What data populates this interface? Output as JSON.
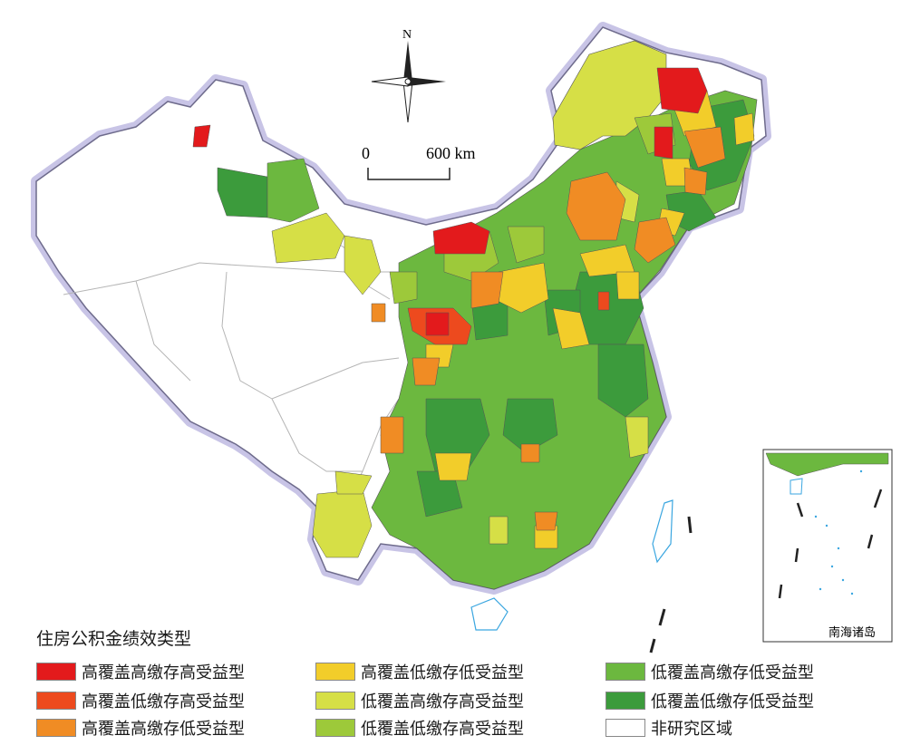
{
  "map": {
    "compass_label": "N",
    "scale_zero": "0",
    "scale_distance": "600 km",
    "inset_label": "南海诸岛"
  },
  "legend": {
    "title": "住房公积金绩效类型",
    "items": [
      {
        "label": "高覆盖高缴存高受益型",
        "color": "#e31a1c"
      },
      {
        "label": "高覆盖低缴存高受益型",
        "color": "#ed4a1e"
      },
      {
        "label": "高覆盖高缴存低受益型",
        "color": "#f08c24"
      },
      {
        "label": "高覆盖低缴存低受益型",
        "color": "#f2cd2a"
      },
      {
        "label": "低覆盖高缴存高受益型",
        "color": "#d6df46"
      },
      {
        "label": "低覆盖低缴存高受益型",
        "color": "#9dc93a"
      },
      {
        "label": "低覆盖高缴存低受益型",
        "color": "#6cb83f"
      },
      {
        "label": "低覆盖低缴存低受益型",
        "color": "#3c9b3c"
      },
      {
        "label": "非研究区域",
        "color": "#ffffff"
      }
    ]
  }
}
